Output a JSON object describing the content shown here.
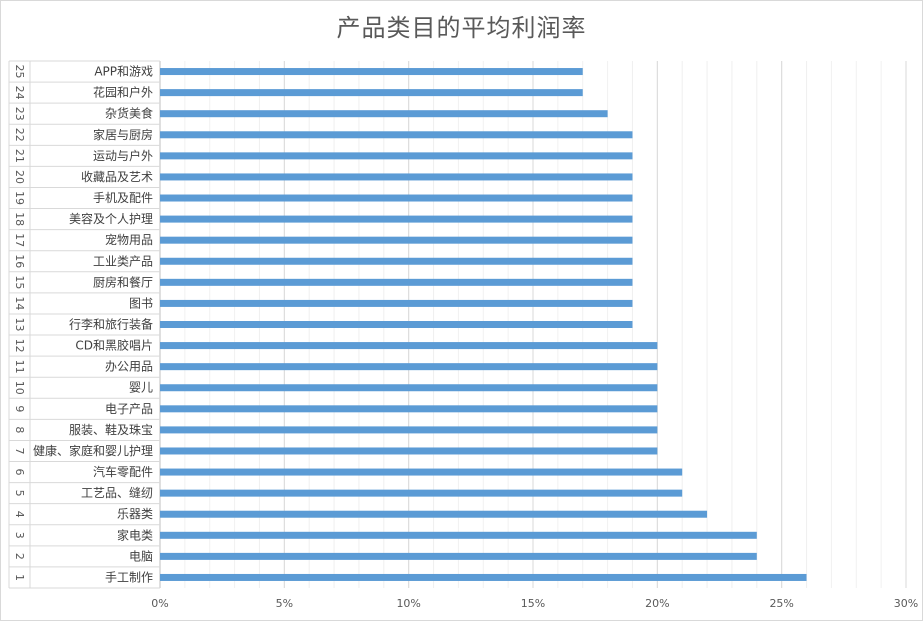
{
  "chart_data": {
    "type": "bar",
    "orientation": "horizontal",
    "title": "产品类目的平均利润率",
    "xlabel": "",
    "ylabel": "",
    "xlim": [
      0,
      0.3
    ],
    "x_ticks": [
      "0%",
      "5%",
      "10%",
      "15%",
      "20%",
      "25%",
      "30%"
    ],
    "x_tick_values": [
      0,
      0.05,
      0.1,
      0.15,
      0.2,
      0.25,
      0.3
    ],
    "grid": true,
    "legend": "none",
    "bar_color": "#5b9bd5",
    "rows": [
      {
        "index": "1",
        "category": "手工制作",
        "value": 0.26
      },
      {
        "index": "2",
        "category": "电脑",
        "value": 0.24
      },
      {
        "index": "3",
        "category": "家电类",
        "value": 0.24
      },
      {
        "index": "4",
        "category": "乐器类",
        "value": 0.22
      },
      {
        "index": "5",
        "category": "工艺品、缝纫",
        "value": 0.21
      },
      {
        "index": "6",
        "category": "汽车零配件",
        "value": 0.21
      },
      {
        "index": "7",
        "category": "健康、家庭和婴儿护理",
        "value": 0.2
      },
      {
        "index": "8",
        "category": "服装、鞋及珠宝",
        "value": 0.2
      },
      {
        "index": "9",
        "category": "电子产品",
        "value": 0.2
      },
      {
        "index": "10",
        "category": "婴儿",
        "value": 0.2
      },
      {
        "index": "11",
        "category": "办公用品",
        "value": 0.2
      },
      {
        "index": "12",
        "category": "CD和黑胶唱片",
        "value": 0.2
      },
      {
        "index": "13",
        "category": "行李和旅行装备",
        "value": 0.19
      },
      {
        "index": "14",
        "category": "图书",
        "value": 0.19
      },
      {
        "index": "15",
        "category": "厨房和餐厅",
        "value": 0.19
      },
      {
        "index": "16",
        "category": "工业类产品",
        "value": 0.19
      },
      {
        "index": "17",
        "category": "宠物用品",
        "value": 0.19
      },
      {
        "index": "18",
        "category": "美容及个人护理",
        "value": 0.19
      },
      {
        "index": "19",
        "category": "手机及配件",
        "value": 0.19
      },
      {
        "index": "20",
        "category": "收藏品及艺术",
        "value": 0.19
      },
      {
        "index": "21",
        "category": "运动与户外",
        "value": 0.19
      },
      {
        "index": "22",
        "category": "家居与厨房",
        "value": 0.19
      },
      {
        "index": "23",
        "category": "杂货美食",
        "value": 0.18
      },
      {
        "index": "24",
        "category": "花园和户外",
        "value": 0.17
      },
      {
        "index": "25",
        "category": "APP和游戏",
        "value": 0.17
      }
    ]
  }
}
